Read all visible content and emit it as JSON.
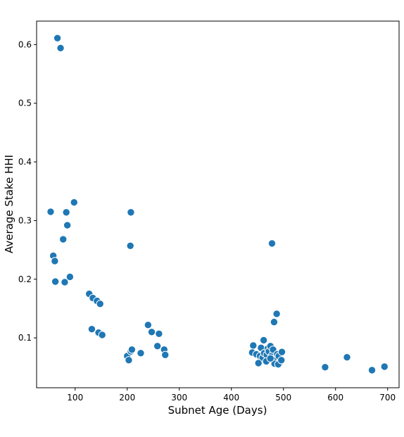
{
  "chart_data": {
    "type": "scatter",
    "title": "",
    "xlabel": "Subnet Age (Days)",
    "ylabel": "Average Stake HHI",
    "xlim": [
      26,
      722
    ],
    "ylim": [
      0.015,
      0.64
    ],
    "xticks": [
      100,
      200,
      300,
      400,
      500,
      600,
      700
    ],
    "yticks": [
      0.1,
      0.2,
      0.3,
      0.4,
      0.5,
      0.6
    ],
    "xtick_labels": [
      "100",
      "200",
      "300",
      "400",
      "500",
      "600",
      "700"
    ],
    "ytick_labels": [
      "0.1",
      "0.2",
      "0.3",
      "0.4",
      "0.5",
      "0.6"
    ],
    "grid": false,
    "marker_color": "#1f77b4",
    "marker_edge": "#ffffff",
    "points": [
      {
        "x": 66,
        "y": 0.611
      },
      {
        "x": 72,
        "y": 0.594
      },
      {
        "x": 53,
        "y": 0.315
      },
      {
        "x": 83,
        "y": 0.314
      },
      {
        "x": 98,
        "y": 0.331
      },
      {
        "x": 85,
        "y": 0.292
      },
      {
        "x": 77,
        "y": 0.268
      },
      {
        "x": 58,
        "y": 0.24
      },
      {
        "x": 61,
        "y": 0.231
      },
      {
        "x": 62,
        "y": 0.196
      },
      {
        "x": 80,
        "y": 0.195
      },
      {
        "x": 90,
        "y": 0.204
      },
      {
        "x": 127,
        "y": 0.175
      },
      {
        "x": 134,
        "y": 0.168
      },
      {
        "x": 142,
        "y": 0.163
      },
      {
        "x": 148,
        "y": 0.158
      },
      {
        "x": 132,
        "y": 0.115
      },
      {
        "x": 145,
        "y": 0.109
      },
      {
        "x": 152,
        "y": 0.105
      },
      {
        "x": 207,
        "y": 0.314
      },
      {
        "x": 206,
        "y": 0.257
      },
      {
        "x": 200,
        "y": 0.069
      },
      {
        "x": 203,
        "y": 0.062
      },
      {
        "x": 207,
        "y": 0.077
      },
      {
        "x": 209,
        "y": 0.08
      },
      {
        "x": 226,
        "y": 0.074
      },
      {
        "x": 240,
        "y": 0.122
      },
      {
        "x": 247,
        "y": 0.11
      },
      {
        "x": 261,
        "y": 0.107
      },
      {
        "x": 258,
        "y": 0.086
      },
      {
        "x": 271,
        "y": 0.08
      },
      {
        "x": 273,
        "y": 0.071
      },
      {
        "x": 478,
        "y": 0.261
      },
      {
        "x": 487,
        "y": 0.141
      },
      {
        "x": 482,
        "y": 0.127
      },
      {
        "x": 462,
        "y": 0.096
      },
      {
        "x": 442,
        "y": 0.087
      },
      {
        "x": 440,
        "y": 0.075
      },
      {
        "x": 448,
        "y": 0.072
      },
      {
        "x": 455,
        "y": 0.069
      },
      {
        "x": 457,
        "y": 0.083
      },
      {
        "x": 460,
        "y": 0.066
      },
      {
        "x": 463,
        "y": 0.074
      },
      {
        "x": 468,
        "y": 0.071
      },
      {
        "x": 470,
        "y": 0.082
      },
      {
        "x": 472,
        "y": 0.077
      },
      {
        "x": 475,
        "y": 0.086
      },
      {
        "x": 478,
        "y": 0.07
      },
      {
        "x": 480,
        "y": 0.08
      },
      {
        "x": 485,
        "y": 0.066
      },
      {
        "x": 488,
        "y": 0.072
      },
      {
        "x": 491,
        "y": 0.069
      },
      {
        "x": 494,
        "y": 0.059
      },
      {
        "x": 497,
        "y": 0.076
      },
      {
        "x": 452,
        "y": 0.057
      },
      {
        "x": 467,
        "y": 0.06
      },
      {
        "x": 483,
        "y": 0.056
      },
      {
        "x": 490,
        "y": 0.055
      },
      {
        "x": 496,
        "y": 0.062
      },
      {
        "x": 475,
        "y": 0.065
      },
      {
        "x": 580,
        "y": 0.05
      },
      {
        "x": 622,
        "y": 0.067
      },
      {
        "x": 670,
        "y": 0.045
      },
      {
        "x": 694,
        "y": 0.051
      }
    ]
  }
}
